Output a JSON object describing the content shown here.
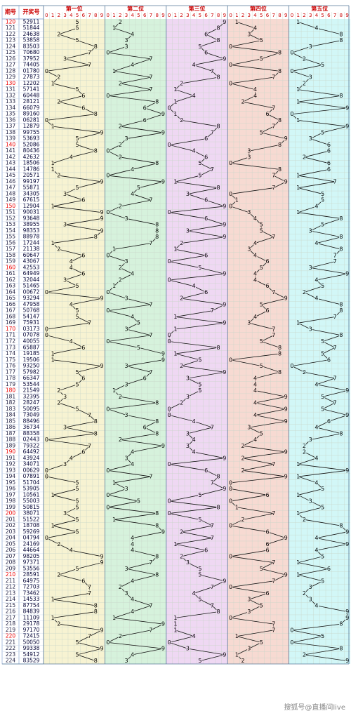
{
  "chart_data": {
    "type": "trend",
    "headers": {
      "period": "期号",
      "number": "开奖号"
    },
    "axis_digits": [
      0,
      1,
      2,
      3,
      4,
      5,
      6,
      7,
      8,
      9
    ],
    "periods": [
      120,
      121,
      122,
      123,
      124,
      125,
      126,
      127,
      128,
      129,
      130,
      131,
      132,
      133,
      134,
      135,
      136,
      137,
      138,
      139,
      140,
      141,
      142,
      143,
      144,
      145,
      146,
      147,
      148,
      149,
      150,
      151,
      152,
      153,
      154,
      155,
      156,
      157,
      158,
      159,
      160,
      161,
      162,
      163,
      164,
      165,
      166,
      167,
      168,
      169,
      170,
      171,
      172,
      173,
      174,
      175,
      176,
      177,
      178,
      179,
      180,
      181,
      182,
      183,
      184,
      185,
      186,
      187,
      188,
      189,
      190,
      191,
      192,
      193,
      194,
      195,
      196,
      197,
      198,
      199,
      200,
      201,
      202,
      203,
      204,
      205,
      206,
      207,
      208,
      209,
      210,
      211,
      212,
      213,
      214,
      215,
      216,
      217,
      218,
      219,
      220,
      221,
      222,
      223,
      224
    ],
    "numbers": [
      "52911",
      "51844",
      "24638",
      "53858",
      "83503",
      "70680",
      "37952",
      "74405",
      "01780",
      "27873",
      "12202",
      "57141",
      "60448",
      "28121",
      "66079",
      "89160",
      "06281",
      "12879",
      "99755",
      "53693",
      "52086",
      "80436",
      "42632",
      "18506",
      "14786",
      "20571",
      "99197",
      "55871",
      "34305",
      "67615",
      "12904",
      "90031",
      "93648",
      "38955",
      "98353",
      "88978",
      "17244",
      "21138",
      "60647",
      "43067",
      "42553",
      "64949",
      "32044",
      "51465",
      "00672",
      "93294",
      "47958",
      "50768",
      "54147",
      "75931",
      "03173",
      "07078",
      "40055",
      "65887",
      "19185",
      "19506",
      "93250",
      "57982",
      "66347",
      "53544",
      "21549",
      "32395",
      "28247",
      "50095",
      "73049",
      "88496",
      "36734",
      "88358",
      "02443",
      "79322",
      "64492",
      "43924",
      "34071",
      "00629",
      "07891",
      "51704",
      "53905",
      "10561",
      "55003",
      "50815",
      "38071",
      "51522",
      "18708",
      "59269",
      "04794",
      "24169",
      "44664",
      "98205",
      "97371",
      "53556",
      "28591",
      "64975",
      "72703",
      "73462",
      "14533",
      "87754",
      "84839",
      "11109",
      "29178",
      "97170",
      "72415",
      "50050",
      "99338",
      "54912",
      "83529"
    ],
    "columns": [
      {
        "title": "第一位",
        "color": "#f7f3d2",
        "digits": [
          5,
          5,
          2,
          5,
          8,
          7,
          3,
          7,
          0,
          2,
          1,
          5,
          6,
          2,
          6,
          8,
          0,
          1,
          9,
          5,
          5,
          8,
          4,
          1,
          1,
          2,
          9,
          5,
          3,
          6,
          1,
          9,
          9,
          3,
          9,
          8,
          1,
          2,
          6,
          4,
          4,
          6,
          3,
          5,
          0,
          9,
          4,
          5,
          5,
          7,
          0,
          0,
          4,
          6,
          1,
          1,
          9,
          5,
          6,
          5,
          2,
          3,
          2,
          5,
          7,
          8,
          3,
          8,
          0,
          7,
          6,
          4,
          3,
          0,
          0,
          5,
          5,
          1,
          5,
          5,
          3,
          5,
          1,
          5,
          0,
          2,
          4,
          9,
          9,
          5,
          2,
          6,
          7,
          7,
          1,
          8,
          8,
          1,
          2,
          9,
          7,
          5,
          9,
          5,
          8
        ]
      },
      {
        "title": "第二位",
        "color": "#d6f2dc",
        "digits": [
          2,
          1,
          4,
          3,
          3,
          0,
          7,
          4,
          1,
          7,
          2,
          7,
          0,
          8,
          6,
          9,
          6,
          2,
          9,
          3,
          2,
          0,
          2,
          8,
          4,
          0,
          9,
          5,
          4,
          7,
          2,
          0,
          3,
          8,
          8,
          8,
          7,
          1,
          0,
          3,
          2,
          4,
          2,
          1,
          0,
          3,
          7,
          0,
          4,
          5,
          3,
          7,
          0,
          5,
          9,
          9,
          3,
          7,
          6,
          3,
          1,
          2,
          8,
          0,
          3,
          8,
          6,
          8,
          2,
          9,
          4,
          3,
          4,
          0,
          7,
          1,
          3,
          0,
          5,
          0,
          8,
          1,
          8,
          9,
          4,
          4,
          4,
          8,
          7,
          3,
          8,
          4,
          2,
          3,
          4,
          7,
          4,
          1,
          9,
          7,
          2,
          0,
          9,
          4,
          3
        ]
      },
      {
        "title": "第三位",
        "color": "#efd8f3",
        "digits": [
          9,
          8,
          6,
          8,
          5,
          6,
          9,
          4,
          7,
          8,
          2,
          1,
          4,
          1,
          0,
          1,
          2,
          8,
          7,
          6,
          0,
          4,
          6,
          5,
          7,
          5,
          1,
          8,
          3,
          6,
          9,
          0,
          6,
          9,
          3,
          9,
          2,
          1,
          6,
          0,
          5,
          9,
          0,
          4,
          6,
          2,
          9,
          7,
          1,
          9,
          1,
          0,
          0,
          8,
          1,
          5,
          2,
          9,
          3,
          5,
          5,
          3,
          2,
          0,
          0,
          4,
          7,
          3,
          4,
          3,
          4,
          9,
          0,
          6,
          8,
          7,
          9,
          5,
          0,
          8,
          0,
          5,
          7,
          2,
          7,
          1,
          6,
          2,
          3,
          5,
          5,
          9,
          7,
          4,
          5,
          7,
          8,
          1,
          1,
          1,
          4,
          0,
          3,
          9,
          5
        ]
      },
      {
        "title": "第四位",
        "color": "#f7dad2",
        "digits": [
          1,
          4,
          3,
          5,
          0,
          8,
          5,
          0,
          8,
          7,
          0,
          4,
          4,
          2,
          7,
          6,
          8,
          7,
          5,
          9,
          8,
          3,
          3,
          0,
          8,
          7,
          9,
          7,
          0,
          1,
          0,
          3,
          4,
          5,
          5,
          7,
          4,
          3,
          4,
          6,
          5,
          4,
          4,
          6,
          7,
          9,
          5,
          6,
          4,
          3,
          7,
          7,
          5,
          8,
          8,
          0,
          5,
          8,
          4,
          4,
          4,
          9,
          4,
          9,
          4,
          9,
          3,
          5,
          4,
          2,
          9,
          2,
          7,
          2,
          9,
          0,
          0,
          6,
          0,
          1,
          7,
          2,
          0,
          6,
          9,
          6,
          6,
          0,
          7,
          5,
          9,
          7,
          0,
          6,
          3,
          5,
          3,
          0,
          7,
          7,
          1,
          5,
          3,
          1,
          2
        ]
      },
      {
        "title": "第五位",
        "color": "#d2f7f7",
        "digits": [
          1,
          4,
          8,
          8,
          3,
          0,
          2,
          5,
          0,
          3,
          2,
          1,
          8,
          1,
          9,
          0,
          1,
          9,
          5,
          3,
          6,
          6,
          2,
          6,
          6,
          1,
          7,
          1,
          5,
          5,
          4,
          1,
          8,
          5,
          3,
          8,
          4,
          8,
          7,
          7,
          3,
          9,
          4,
          5,
          2,
          4,
          8,
          8,
          7,
          1,
          3,
          8,
          5,
          7,
          5,
          6,
          0,
          2,
          7,
          4,
          9,
          5,
          7,
          5,
          9,
          6,
          4,
          8,
          3,
          2,
          2,
          4,
          1,
          9,
          1,
          4,
          5,
          1,
          3,
          5,
          1,
          2,
          8,
          9,
          4,
          9,
          4,
          5,
          1,
          6,
          1,
          5,
          3,
          2,
          3,
          4,
          9,
          9,
          8,
          0,
          5,
          0,
          8,
          2,
          9
        ]
      }
    ],
    "footer": "搜狐号@直播间live"
  }
}
